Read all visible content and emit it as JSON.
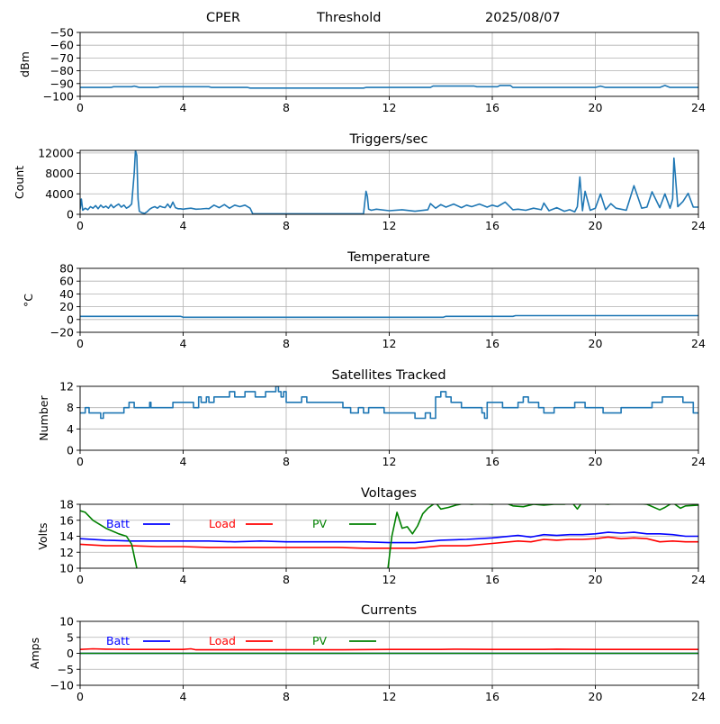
{
  "header": {
    "site": "CPER",
    "mode": "Threshold",
    "date": "2025/08/07"
  },
  "colors": {
    "series": "#1f77b4",
    "grid": "#b0b0b0",
    "batt": "#0000ff",
    "load": "#ff0000",
    "pv": "#008000"
  },
  "chart_data": [
    {
      "id": "threshold",
      "type": "line",
      "title": "",
      "xlabel": "",
      "ylabel": "dBm",
      "xlim": [
        0,
        24
      ],
      "ylim": [
        -100,
        -50
      ],
      "xticks": [
        0,
        4,
        8,
        12,
        16,
        20,
        24
      ],
      "yticks": [
        -100,
        -90,
        -80,
        -70,
        -60,
        -50
      ],
      "ytick_labels": [
        "−100",
        "−90",
        "−80",
        "−70",
        "−60",
        "−50"
      ],
      "grid": true,
      "series": [
        {
          "color": "#1f77b4",
          "x": [
            0,
            1.2,
            1.3,
            2.0,
            2.1,
            2.2,
            2.3,
            3.0,
            3.1,
            5.0,
            5.1,
            6.5,
            6.6,
            11.0,
            11.1,
            13.6,
            13.7,
            15.3,
            15.4,
            16.2,
            16.3,
            16.7,
            16.8,
            20.0,
            20.2,
            20.4,
            22.5,
            22.7,
            22.9,
            23.5,
            24
          ],
          "y": [
            -93,
            -93,
            -92.5,
            -92.5,
            -92,
            -92.5,
            -93,
            -93,
            -92.5,
            -92.5,
            -93,
            -93,
            -93.5,
            -93.5,
            -93,
            -93,
            -92,
            -92,
            -92.5,
            -92.5,
            -91.5,
            -91.5,
            -93,
            -93,
            -92,
            -93,
            -93,
            -91.5,
            -93,
            -93,
            -93
          ]
        }
      ]
    },
    {
      "id": "triggers",
      "type": "line",
      "title": "Triggers/sec",
      "xlabel": "",
      "ylabel": "Count",
      "xlim": [
        0,
        24
      ],
      "ylim": [
        0,
        12500
      ],
      "xticks": [
        0,
        4,
        8,
        12,
        16,
        20,
        24
      ],
      "yticks": [
        0,
        4000,
        8000,
        12000
      ],
      "grid": true,
      "series": [
        {
          "color": "#1f77b4",
          "x": [
            0,
            0.05,
            0.1,
            0.2,
            0.3,
            0.4,
            0.5,
            0.6,
            0.7,
            0.8,
            0.9,
            1.0,
            1.1,
            1.2,
            1.3,
            1.4,
            1.5,
            1.6,
            1.7,
            1.8,
            1.9,
            2.0,
            2.05,
            2.1,
            2.15,
            2.2,
            2.25,
            2.3,
            2.4,
            2.5,
            2.6,
            2.7,
            2.8,
            2.9,
            3.0,
            3.1,
            3.2,
            3.3,
            3.4,
            3.5,
            3.6,
            3.7,
            3.8,
            3.9,
            4.0,
            4.1,
            4.3,
            4.5,
            4.7,
            4.9,
            5.0,
            5.2,
            5.4,
            5.6,
            5.8,
            6.0,
            6.2,
            6.4,
            6.6,
            6.7,
            7.0,
            8.0,
            9.0,
            10.0,
            11.0,
            11.1,
            11.15,
            11.2,
            11.3,
            11.5,
            12.0,
            12.5,
            13.0,
            13.5,
            13.6,
            13.8,
            14.0,
            14.2,
            14.5,
            14.8,
            15.0,
            15.2,
            15.5,
            15.8,
            16.0,
            16.2,
            16.5,
            16.8,
            17.0,
            17.3,
            17.6,
            17.9,
            18.0,
            18.2,
            18.5,
            18.8,
            19.0,
            19.2,
            19.3,
            19.4,
            19.5,
            19.6,
            19.8,
            20.0,
            20.2,
            20.4,
            20.6,
            20.8,
            21.0,
            21.2,
            21.5,
            21.8,
            22.0,
            22.2,
            22.5,
            22.7,
            22.9,
            23.0,
            23.05,
            23.1,
            23.2,
            23.4,
            23.6,
            23.8,
            24
          ],
          "y": [
            1000,
            3000,
            800,
            1200,
            900,
            1500,
            1200,
            1700,
            1100,
            1800,
            1300,
            1600,
            1200,
            1900,
            1300,
            1700,
            2000,
            1400,
            1800,
            1200,
            1500,
            2000,
            5000,
            8000,
            12500,
            11500,
            3000,
            600,
            300,
            200,
            500,
            1000,
            1300,
            1500,
            1200,
            1600,
            1400,
            1300,
            2000,
            1300,
            2400,
            1300,
            1100,
            1100,
            1000,
            1100,
            1200,
            1000,
            1050,
            1150,
            1100,
            1800,
            1300,
            1900,
            1200,
            1800,
            1500,
            1800,
            1200,
            100,
            100,
            100,
            100,
            100,
            100,
            4500,
            3500,
            1000,
            800,
            1000,
            700,
            900,
            600,
            900,
            2100,
            1200,
            1900,
            1400,
            2000,
            1300,
            1800,
            1500,
            2000,
            1400,
            1800,
            1500,
            2400,
            900,
            1000,
            800,
            1200,
            900,
            2200,
            700,
            1300,
            600,
            900,
            500,
            1500,
            7300,
            700,
            4500,
            800,
            1200,
            4000,
            900,
            2100,
            1200,
            1000,
            800,
            5600,
            1200,
            1400,
            4400,
            1300,
            4000,
            1200,
            3000,
            11000,
            8000,
            1500,
            2500,
            4100,
            1400,
            1400
          ]
        }
      ]
    },
    {
      "id": "temperature",
      "type": "line",
      "title": "Temperature",
      "xlabel": "",
      "ylabel": "°C",
      "xlim": [
        0,
        24
      ],
      "ylim": [
        -20,
        80
      ],
      "xticks": [
        0,
        4,
        8,
        12,
        16,
        20,
        24
      ],
      "yticks": [
        -20,
        0,
        20,
        40,
        60,
        80
      ],
      "ytick_labels": [
        "−20",
        "0",
        "20",
        "40",
        "60",
        "80"
      ],
      "grid": true,
      "series": [
        {
          "color": "#1f77b4",
          "x": [
            0,
            3.9,
            4.0,
            14.1,
            14.2,
            16.8,
            16.9,
            24
          ],
          "y": [
            5,
            5,
            3.5,
            3.5,
            5,
            5,
            6,
            6
          ]
        }
      ]
    },
    {
      "id": "satellites",
      "type": "line",
      "title": "Satellites Tracked",
      "xlabel": "",
      "ylabel": "Number",
      "xlim": [
        0,
        24
      ],
      "ylim": [
        0,
        12
      ],
      "xticks": [
        0,
        4,
        8,
        12,
        16,
        20,
        24
      ],
      "yticks": [
        0,
        4,
        8,
        12
      ],
      "grid": true,
      "series": [
        {
          "color": "#1f77b4",
          "steps": true,
          "x": [
            0,
            0.2,
            0.35,
            0.6,
            0.8,
            0.9,
            1.0,
            1.1,
            1.3,
            1.7,
            1.9,
            2.1,
            2.3,
            2.5,
            2.7,
            2.75,
            2.8,
            3.2,
            3.6,
            4.0,
            4.4,
            4.6,
            4.7,
            4.9,
            5.0,
            5.2,
            5.4,
            5.6,
            5.8,
            6.0,
            6.2,
            6.4,
            6.6,
            6.8,
            7.2,
            7.6,
            7.7,
            7.8,
            7.9,
            8.0,
            8.2,
            8.4,
            8.6,
            8.8,
            9.0,
            9.4,
            9.8,
            10.2,
            10.5,
            10.8,
            11.0,
            11.2,
            11.4,
            11.6,
            11.8,
            12.0,
            12.2,
            12.6,
            13.0,
            13.4,
            13.6,
            13.8,
            14.0,
            14.2,
            14.4,
            14.6,
            14.8,
            15.0,
            15.2,
            15.4,
            15.6,
            15.7,
            15.8,
            16.0,
            16.4,
            16.8,
            17.0,
            17.2,
            17.4,
            17.6,
            17.8,
            18.0,
            18.4,
            18.8,
            19.2,
            19.6,
            20.0,
            20.3,
            20.6,
            21.0,
            21.4,
            21.8,
            22.2,
            22.6,
            23.0,
            23.4,
            23.8,
            24
          ],
          "y": [
            7,
            8,
            7,
            7,
            6,
            7,
            7,
            7,
            7,
            8,
            9,
            8,
            8,
            8,
            9,
            8,
            8,
            8,
            9,
            9,
            8,
            10,
            9,
            10,
            9,
            10,
            10,
            10,
            11,
            10,
            10,
            11,
            11,
            10,
            11,
            12,
            11,
            10,
            11,
            9,
            9,
            9,
            10,
            9,
            9,
            9,
            9,
            8,
            7,
            8,
            7,
            8,
            8,
            8,
            7,
            7,
            7,
            7,
            6,
            7,
            6,
            10,
            11,
            10,
            9,
            9,
            8,
            8,
            8,
            8,
            7,
            6,
            9,
            9,
            8,
            8,
            9,
            10,
            9,
            9,
            8,
            7,
            8,
            8,
            9,
            8,
            8,
            7,
            7,
            8,
            8,
            8,
            9,
            10,
            10,
            9,
            7,
            7
          ]
        }
      ]
    },
    {
      "id": "voltages",
      "type": "line",
      "title": "Voltages",
      "xlabel": "",
      "ylabel": "Volts",
      "xlim": [
        0,
        24
      ],
      "ylim": [
        10,
        18
      ],
      "xticks": [
        0,
        4,
        8,
        12,
        16,
        20,
        24
      ],
      "yticks": [
        10,
        12,
        14,
        16,
        18
      ],
      "grid": true,
      "legend": [
        "Batt",
        "Load",
        "PV"
      ],
      "legend_placement": "upper-left inside",
      "series": [
        {
          "name": "Batt",
          "color": "#0000ff",
          "x": [
            0,
            1,
            2,
            3,
            4,
            5,
            6,
            7,
            8,
            9,
            10,
            11,
            12,
            13,
            14,
            15,
            16,
            17,
            17.5,
            18,
            18.5,
            19,
            19.5,
            20,
            20.5,
            21,
            21.5,
            22,
            22.5,
            23,
            23.5,
            24
          ],
          "y": [
            13.7,
            13.5,
            13.4,
            13.4,
            13.4,
            13.4,
            13.3,
            13.4,
            13.3,
            13.3,
            13.3,
            13.3,
            13.2,
            13.2,
            13.5,
            13.6,
            13.8,
            14.1,
            13.9,
            14.2,
            14.1,
            14.2,
            14.2,
            14.3,
            14.5,
            14.4,
            14.5,
            14.3,
            14.3,
            14.2,
            14.0,
            14.0
          ]
        },
        {
          "name": "Load",
          "color": "#ff0000",
          "x": [
            0,
            1,
            2,
            3,
            4,
            5,
            6,
            7,
            8,
            9,
            10,
            11,
            12,
            13,
            14,
            15,
            16,
            17,
            17.5,
            18,
            18.5,
            19,
            19.5,
            20,
            20.5,
            21,
            21.5,
            22,
            22.5,
            23,
            23.5,
            24
          ],
          "y": [
            13.0,
            12.8,
            12.8,
            12.7,
            12.7,
            12.6,
            12.6,
            12.6,
            12.6,
            12.6,
            12.6,
            12.5,
            12.5,
            12.5,
            12.8,
            12.8,
            13.1,
            13.4,
            13.3,
            13.6,
            13.5,
            13.6,
            13.6,
            13.7,
            13.9,
            13.7,
            13.8,
            13.7,
            13.3,
            13.4,
            13.3,
            13.3
          ]
        },
        {
          "name": "PV",
          "color": "#008000",
          "segments": [
            {
              "x": [
                0,
                0.2,
                0.5,
                1.0,
                1.5,
                1.8,
                2.0,
                2.2
              ],
              "y": [
                17.2,
                17.0,
                16.0,
                15.0,
                14.3,
                14.0,
                13.0,
                10.0
              ]
            },
            {
              "x": [
                11.95,
                12.1,
                12.3,
                12.5,
                12.7,
                12.9,
                13.1,
                13.3,
                13.5,
                13.8,
                14.0,
                14.3,
                14.6,
                14.9,
                15.2,
                15.5,
                16.0,
                16.4,
                16.8,
                17.2,
                17.6,
                18.0,
                18.4,
                18.8,
                19.1,
                19.3,
                19.5,
                20.0,
                20.5,
                21.0,
                21.5,
                22.0,
                22.5,
                22.7,
                23.0,
                23.3,
                23.5,
                24
              ],
              "y": [
                10.0,
                14.0,
                17.0,
                15.0,
                15.2,
                14.3,
                15.3,
                16.8,
                17.5,
                18.2,
                17.4,
                17.6,
                17.9,
                18.1,
                18.0,
                18.1,
                18.0,
                18.3,
                17.8,
                17.7,
                18.0,
                17.9,
                18.0,
                18.0,
                18.2,
                17.4,
                18.3,
                18.1,
                18.0,
                18.2,
                18.1,
                18.0,
                17.3,
                17.6,
                18.2,
                17.5,
                17.8,
                17.9
              ]
            }
          ]
        }
      ]
    },
    {
      "id": "currents",
      "type": "line",
      "title": "Currents",
      "xlabel": "",
      "ylabel": "Amps",
      "xlim": [
        0,
        24
      ],
      "ylim": [
        -10,
        10
      ],
      "xticks": [
        0,
        4,
        8,
        12,
        16,
        20,
        24
      ],
      "yticks": [
        -10,
        -5,
        0,
        5,
        10
      ],
      "ytick_labels": [
        "−10",
        "−5",
        "0",
        "5",
        "10"
      ],
      "grid": true,
      "legend": [
        "Batt",
        "Load",
        "PV"
      ],
      "legend_placement": "upper-left inside",
      "series": [
        {
          "name": "Batt",
          "color": "#0000ff",
          "x": [
            0,
            24
          ],
          "y": [
            0,
            0
          ]
        },
        {
          "name": "Load",
          "color": "#ff0000",
          "x": [
            0,
            0.5,
            1,
            2,
            3,
            4,
            4.3,
            4.5,
            6,
            8,
            10,
            12,
            14,
            14.5,
            16,
            18,
            18.5,
            20,
            22,
            24
          ],
          "y": [
            1.2,
            1.4,
            1.3,
            1.2,
            1.2,
            1.2,
            1.4,
            1.1,
            1.1,
            1.1,
            1.1,
            1.2,
            1.2,
            1.3,
            1.2,
            1.2,
            1.3,
            1.2,
            1.2,
            1.2
          ]
        },
        {
          "name": "PV",
          "color": "#008000",
          "x": [
            0,
            24
          ],
          "y": [
            0,
            0
          ]
        }
      ]
    }
  ]
}
